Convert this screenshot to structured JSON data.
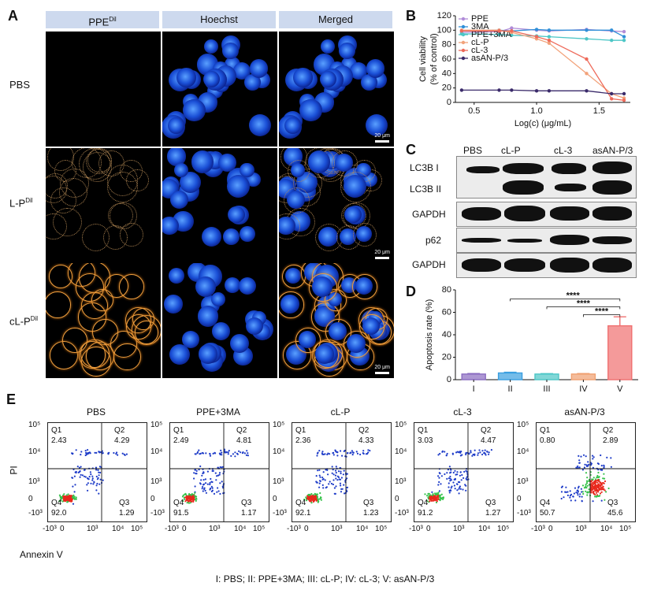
{
  "panels": {
    "A": "A",
    "B": "B",
    "C": "C",
    "D": "D",
    "E": "E"
  },
  "panel_a": {
    "columns": [
      {
        "main": "PPE",
        "sup": "Dil"
      },
      {
        "main": "Hoechst",
        "sup": ""
      },
      {
        "main": "Merged",
        "sup": ""
      }
    ],
    "rows": [
      {
        "main": "PBS",
        "sup": ""
      },
      {
        "main": "L-P",
        "sup": "Dil"
      },
      {
        "main": "cL-P",
        "sup": "Dil"
      }
    ],
    "scalebar": "20 μm"
  },
  "panel_c": {
    "lanes": [
      "PBS",
      "cL-P",
      "cL-3",
      "asAN-P/3"
    ],
    "rows": [
      "LC3B I",
      "LC3B II",
      "GAPDH",
      "p62",
      "GAPDH"
    ]
  },
  "chart_data": [
    {
      "id": "B",
      "type": "line",
      "title": "",
      "xlabel": "Log(c) (μg/mL)",
      "ylabel": "Cell viability (% of control)",
      "xlim": [
        0.35,
        1.75
      ],
      "ylim": [
        0,
        120
      ],
      "xticks": [
        0.5,
        1.0,
        1.5
      ],
      "xtick_labels": [
        "0.5",
        "1.0",
        "1.5"
      ],
      "yticks": [
        0,
        20,
        40,
        60,
        80,
        100,
        120
      ],
      "x": [
        0.4,
        0.7,
        0.8,
        1.0,
        1.1,
        1.4,
        1.6,
        1.7
      ],
      "series": [
        {
          "name": "PPE",
          "color": "#b08cd8",
          "values": [
            97,
            98,
            103,
            100,
            99,
            101,
            99,
            98
          ]
        },
        {
          "name": "3MA",
          "color": "#2f8fd8",
          "values": [
            99,
            100,
            99,
            101,
            100,
            100,
            100,
            91
          ]
        },
        {
          "name": "PPE+3MA",
          "color": "#4cc6c6",
          "values": [
            95,
            94,
            93,
            92,
            91,
            88,
            86,
            86
          ]
        },
        {
          "name": "cL-P",
          "color": "#f2a27a",
          "values": [
            100,
            100,
            97,
            88,
            82,
            40,
            12,
            6
          ]
        },
        {
          "name": "cL-3",
          "color": "#ee6a5a",
          "values": [
            99,
            99,
            99,
            91,
            86,
            60,
            5,
            3
          ]
        },
        {
          "name": "asAN-P/3",
          "color": "#3a2a6a",
          "values": [
            17,
            17,
            17,
            16,
            16,
            16,
            12,
            12
          ]
        }
      ]
    },
    {
      "id": "D",
      "type": "bar",
      "title": "",
      "xlabel": "",
      "ylabel": "Apoptosis rate (%)",
      "ylim": [
        0,
        80
      ],
      "yticks": [
        0,
        20,
        40,
        60,
        80
      ],
      "categories": [
        "I",
        "II",
        "III",
        "IV",
        "V"
      ],
      "values": [
        5,
        6,
        5,
        5,
        48
      ],
      "errors": [
        0.5,
        0.6,
        0.4,
        0.5,
        8
      ],
      "colors": [
        "#8a6bc0",
        "#3b9fe0",
        "#4cc6c6",
        "#f0a070",
        "#ef6f6f"
      ],
      "significance": [
        "****",
        "****",
        "****"
      ]
    },
    {
      "id": "E",
      "type": "scatter",
      "xlabel": "Annexin V",
      "ylabel": "PI",
      "x_tick_labels": [
        "-10³",
        "0",
        "10³",
        "10⁴",
        "10⁵"
      ],
      "y_tick_labels": [
        "10⁵",
        "10⁴",
        "10³",
        "0",
        "-10³"
      ],
      "quadrant_names": [
        "Q1",
        "Q2",
        "Q3",
        "Q4"
      ],
      "plots": [
        {
          "title": "PBS",
          "Q1": "2.43",
          "Q2": "4.29",
          "Q3": "1.29",
          "Q4": "92.0"
        },
        {
          "title": "PPE+3MA",
          "Q1": "2.49",
          "Q2": "4.81",
          "Q3": "1.17",
          "Q4": "91.5"
        },
        {
          "title": "cL-P",
          "Q1": "2.36",
          "Q2": "4.33",
          "Q3": "1.23",
          "Q4": "92.1"
        },
        {
          "title": "cL-3",
          "Q1": "3.03",
          "Q2": "4.47",
          "Q3": "1.27",
          "Q4": "91.2"
        },
        {
          "title": "asAN-P/3",
          "Q1": "0.80",
          "Q2": "2.89",
          "Q3": "45.6",
          "Q4": "50.7"
        }
      ]
    }
  ],
  "footer": "I: PBS; II: PPE+3MA; III: cL-P; IV: cL-3; V: asAN-P/3"
}
